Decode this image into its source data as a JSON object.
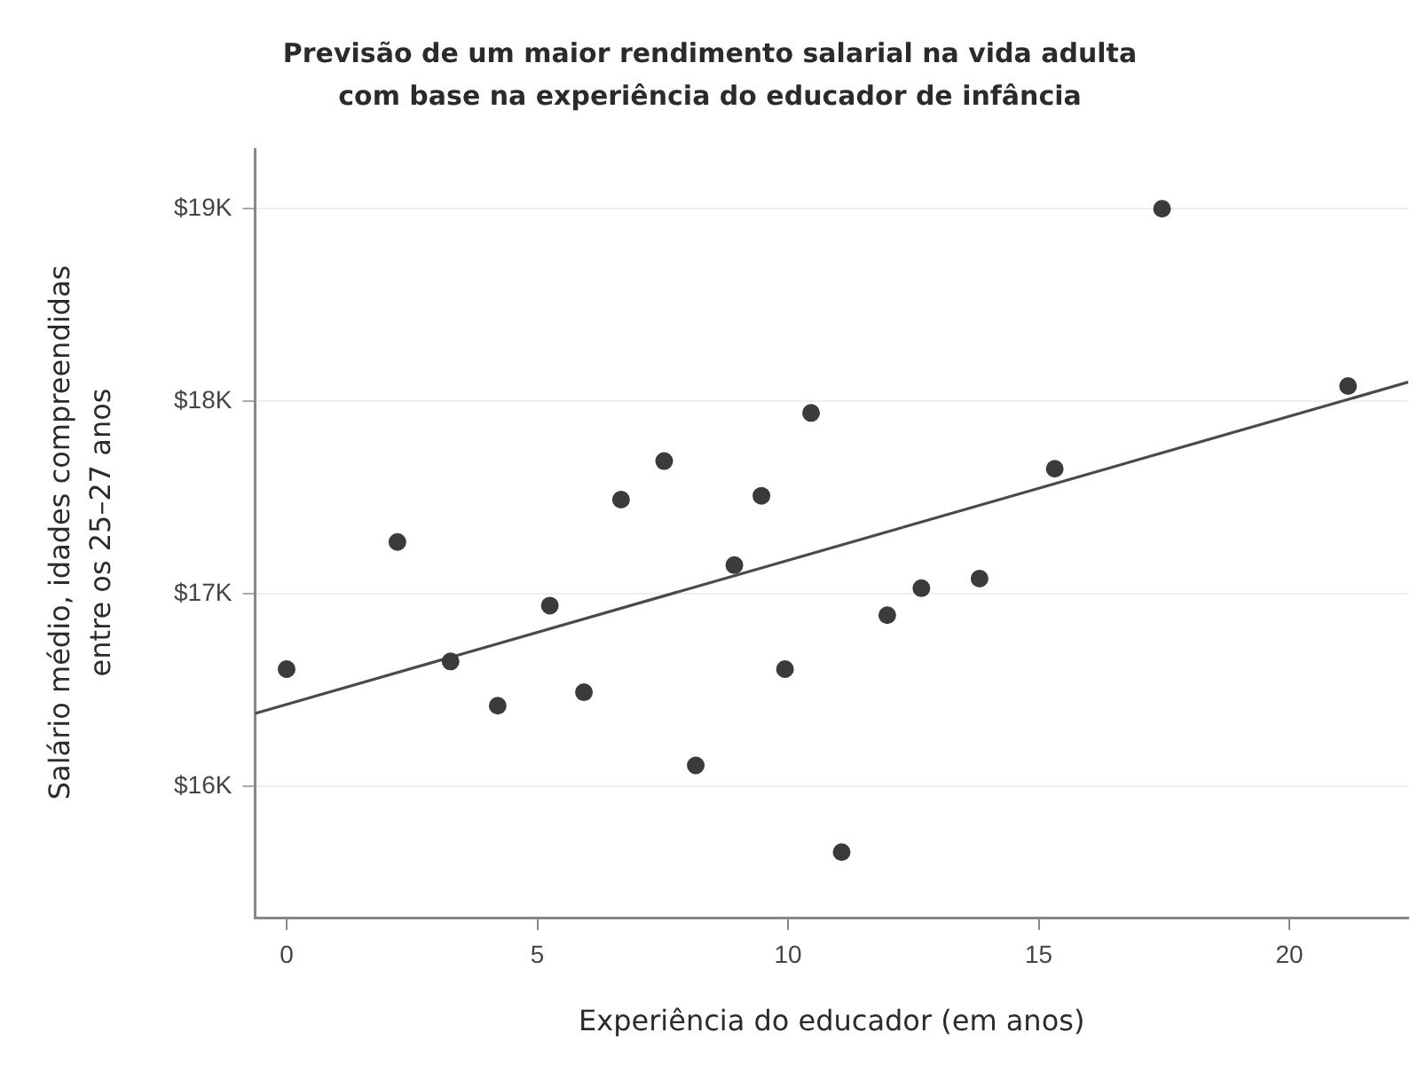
{
  "chart_data": {
    "type": "scatter",
    "title": "Previsão de um maior rendimento salarial na vida adulta com base na experiência do educador de infância",
    "xlabel": "Experiência do educador (em anos)",
    "ylabel": "Salário médio, idades compreendidas entre os 25–27 anos",
    "xlim": [
      -0.63,
      22.37
    ],
    "xticks": [
      0,
      5,
      10,
      15,
      20
    ],
    "ylim": [
      15.32,
      19.31
    ],
    "yticks": [
      {
        "value": 16,
        "label": "$16K"
      },
      {
        "value": 17,
        "label": "$17K"
      },
      {
        "value": 18,
        "label": "$18K"
      },
      {
        "value": 19,
        "label": "$19K"
      }
    ],
    "grid": "y",
    "series": [
      {
        "type": "scatter",
        "marker": "circle",
        "color": "#3d3a3a",
        "x": [
          0,
          2.21,
          3.27,
          4.21,
          5.25,
          5.93,
          6.67,
          7.53,
          8.16,
          8.93,
          9.47,
          9.94,
          10.46,
          11.07,
          11.98,
          12.66,
          13.82,
          15.32,
          17.46,
          21.17
        ],
        "values": [
          16.61,
          17.27,
          16.65,
          16.42,
          16.94,
          16.49,
          17.49,
          17.69,
          16.11,
          17.15,
          17.51,
          16.61,
          17.94,
          15.66,
          16.89,
          17.03,
          17.08,
          17.65,
          19.0,
          18.08
        ]
      },
      {
        "type": "line",
        "marker": "none",
        "color": "#4a4a4a",
        "x": [
          -0.63,
          22.37
        ],
        "values": [
          16.38,
          18.1
        ]
      }
    ]
  }
}
